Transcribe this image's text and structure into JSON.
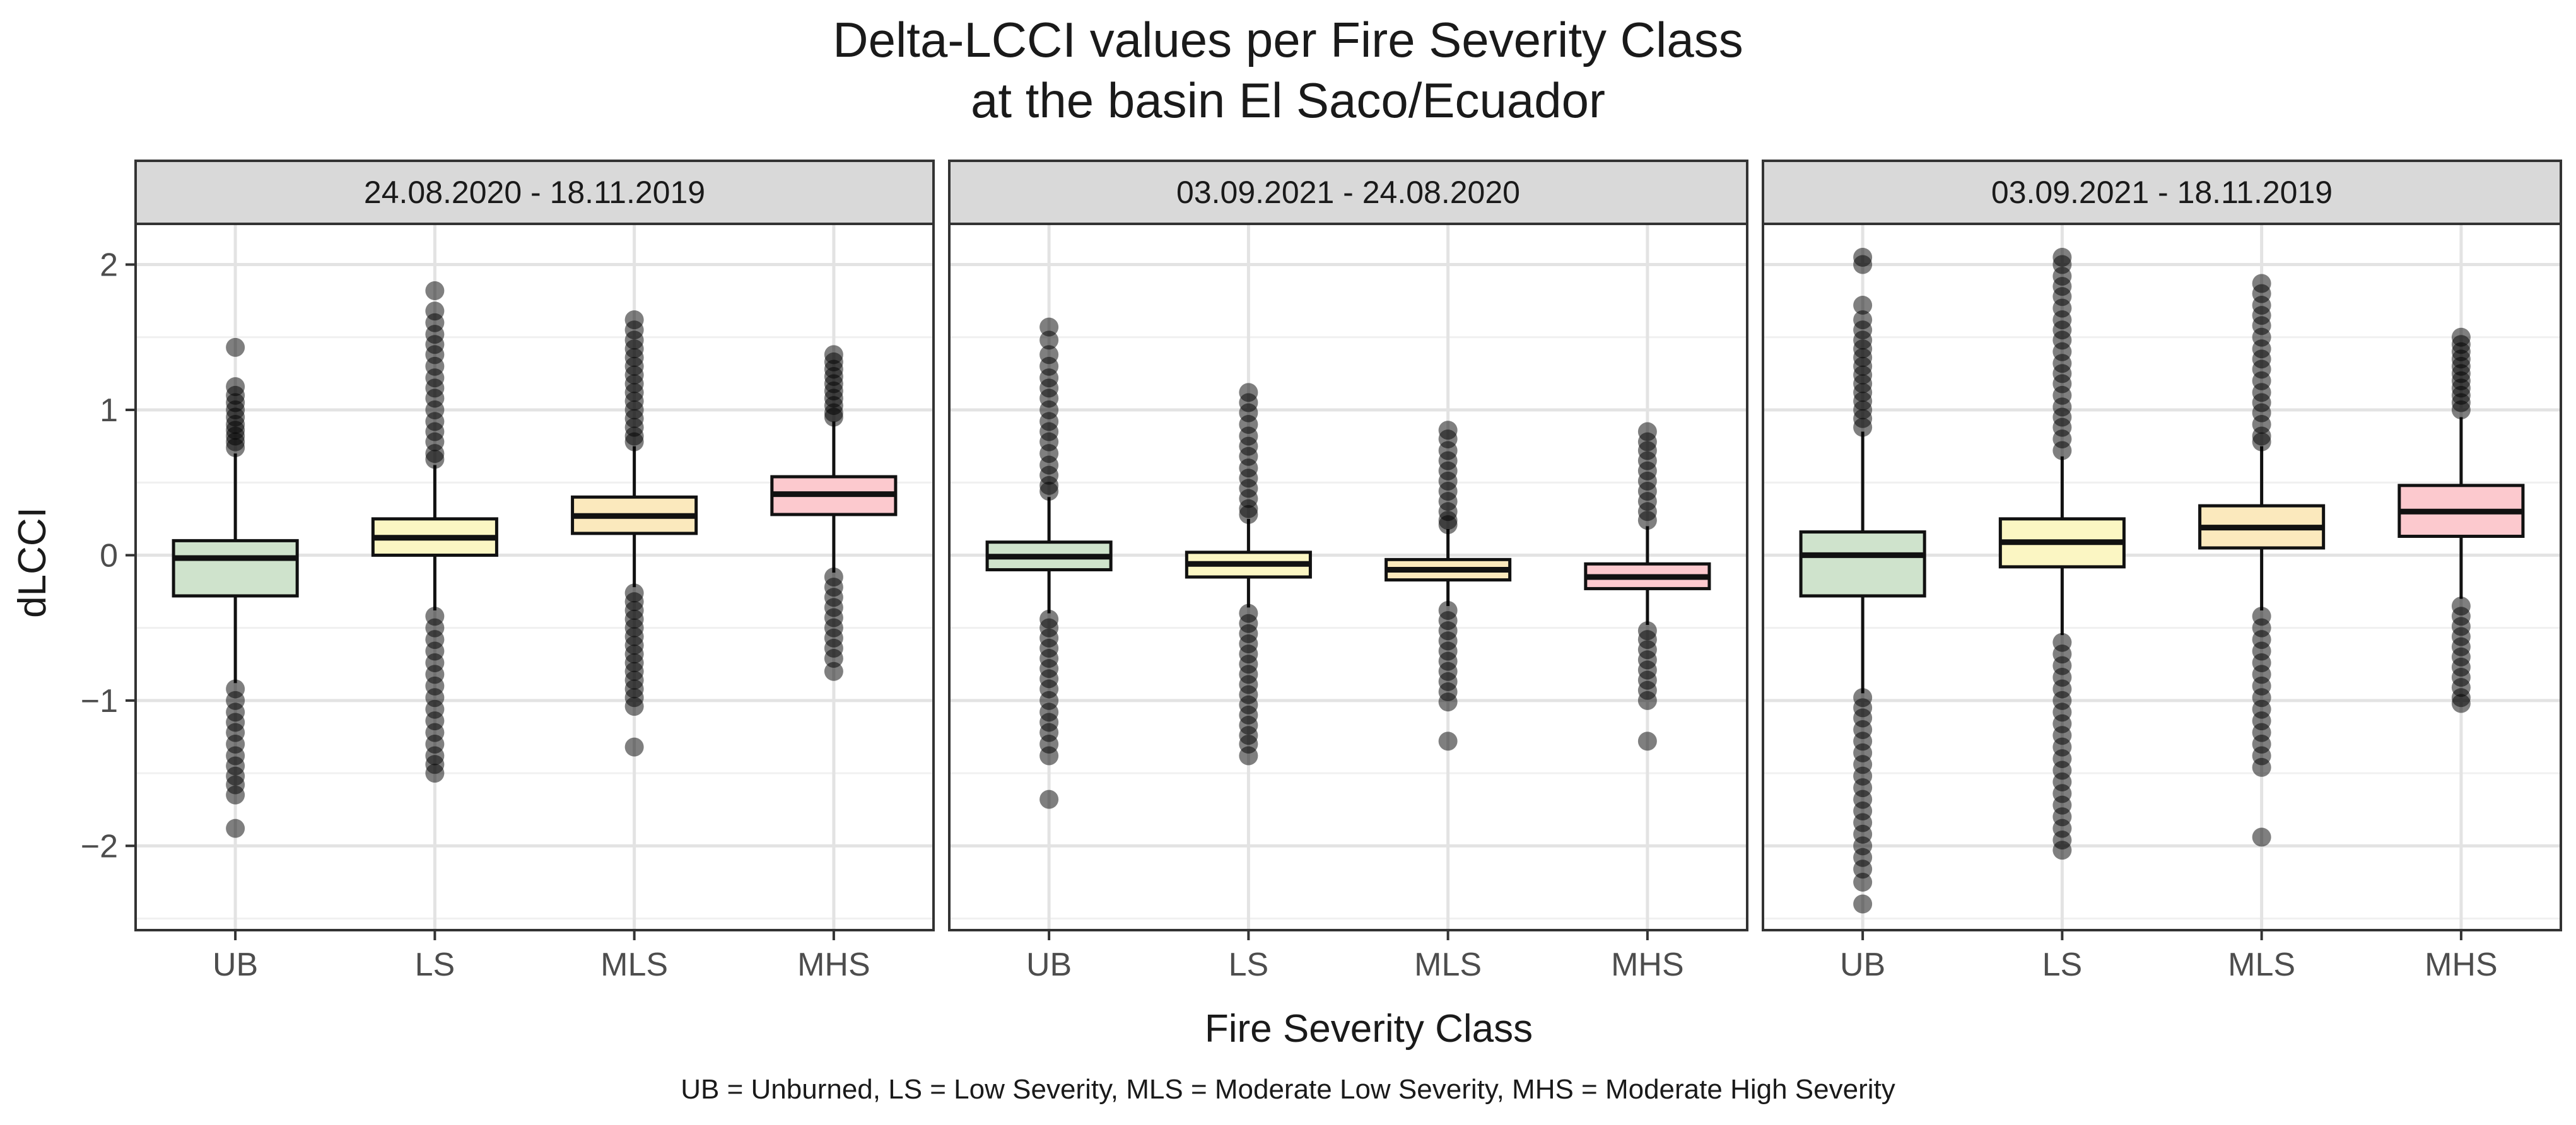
{
  "chart_data": {
    "type": "boxplot",
    "title": "Delta-LCCI values per Fire Severity Class",
    "subtitle": "at the basin El Saco/Ecuador",
    "xlabel": "Fire Severity Class",
    "ylabel": "dLCCI",
    "caption": "UB = Unburned, LS = Low Severity, MLS = Moderate Low Severity, MHS = Moderate High Severity",
    "categories": [
      "UB",
      "LS",
      "MLS",
      "MHS"
    ],
    "category_colors": {
      "UB": "#cfe3cc",
      "LS": "#fbf6c3",
      "MLS": "#fbe9bd",
      "MHS": "#fcc9ce"
    },
    "y_ticks": [
      2,
      1,
      0,
      -1,
      -2
    ],
    "y_tick_labels": [
      "2",
      "1",
      "0",
      "−1",
      "−2"
    ],
    "ylim": [
      -2.58,
      2.28
    ],
    "grid": true,
    "panels": [
      {
        "label": "24.08.2020 - 18.11.2019",
        "boxes": [
          {
            "category": "UB",
            "q1": -0.28,
            "median": -0.02,
            "q3": 0.1,
            "whisker_low": -0.88,
            "whisker_high": 0.7,
            "outliers": [
              1.43,
              1.16,
              1.1,
              1.05,
              1.0,
              0.95,
              0.9,
              0.86,
              0.82,
              0.78,
              0.74,
              -0.92,
              -1.0,
              -1.08,
              -1.15,
              -1.22,
              -1.3,
              -1.38,
              -1.45,
              -1.52,
              -1.58,
              -1.65,
              -1.88
            ]
          },
          {
            "category": "LS",
            "q1": 0.0,
            "median": 0.12,
            "q3": 0.25,
            "whisker_low": -0.38,
            "whisker_high": 0.62,
            "outliers": [
              1.82,
              1.68,
              1.6,
              1.52,
              1.45,
              1.38,
              1.3,
              1.22,
              1.15,
              1.08,
              1.0,
              0.92,
              0.85,
              0.78,
              0.7,
              0.66,
              -0.42,
              -0.5,
              -0.58,
              -0.66,
              -0.74,
              -0.82,
              -0.9,
              -0.98,
              -1.06,
              -1.14,
              -1.22,
              -1.3,
              -1.38,
              -1.44,
              -1.5
            ]
          },
          {
            "category": "MLS",
            "q1": 0.15,
            "median": 0.27,
            "q3": 0.4,
            "whisker_low": -0.22,
            "whisker_high": 0.75,
            "outliers": [
              1.62,
              1.55,
              1.48,
              1.42,
              1.36,
              1.3,
              1.24,
              1.18,
              1.12,
              1.06,
              1.0,
              0.94,
              0.88,
              0.82,
              0.78,
              -0.26,
              -0.32,
              -0.38,
              -0.44,
              -0.5,
              -0.56,
              -0.62,
              -0.68,
              -0.74,
              -0.8,
              -0.86,
              -0.92,
              -0.98,
              -1.04,
              -1.32
            ]
          },
          {
            "category": "MHS",
            "q1": 0.28,
            "median": 0.42,
            "q3": 0.54,
            "whisker_low": -0.12,
            "whisker_high": 0.92,
            "outliers": [
              1.38,
              1.33,
              1.28,
              1.23,
              1.18,
              1.13,
              1.08,
              1.03,
              0.98,
              0.95,
              -0.15,
              -0.22,
              -0.29,
              -0.36,
              -0.43,
              -0.5,
              -0.57,
              -0.64,
              -0.71,
              -0.8
            ]
          }
        ]
      },
      {
        "label": "03.09.2021 - 24.08.2020",
        "boxes": [
          {
            "category": "UB",
            "q1": -0.1,
            "median": -0.01,
            "q3": 0.09,
            "whisker_low": -0.4,
            "whisker_high": 0.4,
            "outliers": [
              1.57,
              1.48,
              1.38,
              1.3,
              1.22,
              1.15,
              1.08,
              1.0,
              0.92,
              0.85,
              0.78,
              0.7,
              0.62,
              0.55,
              0.48,
              0.44,
              -0.44,
              -0.5,
              -0.57,
              -0.64,
              -0.71,
              -0.78,
              -0.85,
              -0.92,
              -1.0,
              -1.08,
              -1.15,
              -1.22,
              -1.3,
              -1.38,
              -1.68
            ]
          },
          {
            "category": "LS",
            "q1": -0.15,
            "median": -0.06,
            "q3": 0.02,
            "whisker_low": -0.36,
            "whisker_high": 0.25,
            "outliers": [
              1.12,
              1.05,
              0.98,
              0.9,
              0.82,
              0.75,
              0.68,
              0.6,
              0.53,
              0.46,
              0.39,
              0.32,
              0.28,
              -0.4,
              -0.47,
              -0.54,
              -0.61,
              -0.68,
              -0.75,
              -0.82,
              -0.89,
              -0.96,
              -1.03,
              -1.1,
              -1.17,
              -1.24,
              -1.3,
              -1.38
            ]
          },
          {
            "category": "MLS",
            "q1": -0.17,
            "median": -0.1,
            "q3": -0.03,
            "whisker_low": -0.35,
            "whisker_high": 0.18,
            "outliers": [
              0.86,
              0.8,
              0.72,
              0.65,
              0.58,
              0.51,
              0.44,
              0.37,
              0.3,
              0.24,
              0.21,
              -0.38,
              -0.45,
              -0.52,
              -0.59,
              -0.66,
              -0.73,
              -0.8,
              -0.87,
              -0.94,
              -1.01,
              -1.28
            ]
          },
          {
            "category": "MHS",
            "q1": -0.23,
            "median": -0.15,
            "q3": -0.06,
            "whisker_low": -0.48,
            "whisker_high": 0.2,
            "outliers": [
              0.85,
              0.78,
              0.72,
              0.65,
              0.58,
              0.51,
              0.44,
              0.37,
              0.3,
              0.24,
              -0.52,
              -0.58,
              -0.65,
              -0.72,
              -0.79,
              -0.86,
              -0.93,
              -1.0,
              -1.28
            ]
          }
        ]
      },
      {
        "label": "03.09.2021 - 18.11.2019",
        "boxes": [
          {
            "category": "UB",
            "q1": -0.28,
            "median": 0.0,
            "q3": 0.16,
            "whisker_low": -0.95,
            "whisker_high": 0.85,
            "outliers": [
              2.05,
              2.0,
              1.72,
              1.62,
              1.55,
              1.48,
              1.42,
              1.36,
              1.3,
              1.24,
              1.18,
              1.12,
              1.06,
              1.0,
              0.94,
              0.88,
              -0.98,
              -1.05,
              -1.12,
              -1.2,
              -1.28,
              -1.36,
              -1.44,
              -1.52,
              -1.6,
              -1.68,
              -1.76,
              -1.84,
              -1.92,
              -2.0,
              -2.08,
              -2.16,
              -2.25,
              -2.4
            ]
          },
          {
            "category": "LS",
            "q1": -0.08,
            "median": 0.09,
            "q3": 0.25,
            "whisker_low": -0.55,
            "whisker_high": 0.68,
            "outliers": [
              2.05,
              2.0,
              1.92,
              1.85,
              1.78,
              1.7,
              1.62,
              1.55,
              1.48,
              1.4,
              1.32,
              1.25,
              1.18,
              1.1,
              1.02,
              0.95,
              0.88,
              0.8,
              0.72,
              -0.6,
              -0.68,
              -0.76,
              -0.84,
              -0.92,
              -1.0,
              -1.08,
              -1.16,
              -1.24,
              -1.32,
              -1.4,
              -1.48,
              -1.56,
              -1.64,
              -1.72,
              -1.8,
              -1.88,
              -1.96,
              -2.03
            ]
          },
          {
            "category": "MLS",
            "q1": 0.05,
            "median": 0.19,
            "q3": 0.34,
            "whisker_low": -0.38,
            "whisker_high": 0.75,
            "outliers": [
              1.87,
              1.8,
              1.72,
              1.65,
              1.58,
              1.5,
              1.42,
              1.35,
              1.28,
              1.2,
              1.12,
              1.05,
              0.98,
              0.9,
              0.82,
              0.78,
              -0.42,
              -0.5,
              -0.58,
              -0.66,
              -0.74,
              -0.82,
              -0.9,
              -0.98,
              -1.06,
              -1.14,
              -1.22,
              -1.3,
              -1.38,
              -1.46,
              -1.94
            ]
          },
          {
            "category": "MHS",
            "q1": 0.13,
            "median": 0.3,
            "q3": 0.48,
            "whisker_low": -0.3,
            "whisker_high": 0.95,
            "outliers": [
              1.5,
              1.45,
              1.4,
              1.35,
              1.3,
              1.25,
              1.2,
              1.15,
              1.1,
              1.05,
              1.0,
              -0.35,
              -0.42,
              -0.49,
              -0.56,
              -0.63,
              -0.7,
              -0.77,
              -0.84,
              -0.91,
              -0.98,
              -1.02
            ]
          }
        ]
      }
    ]
  }
}
